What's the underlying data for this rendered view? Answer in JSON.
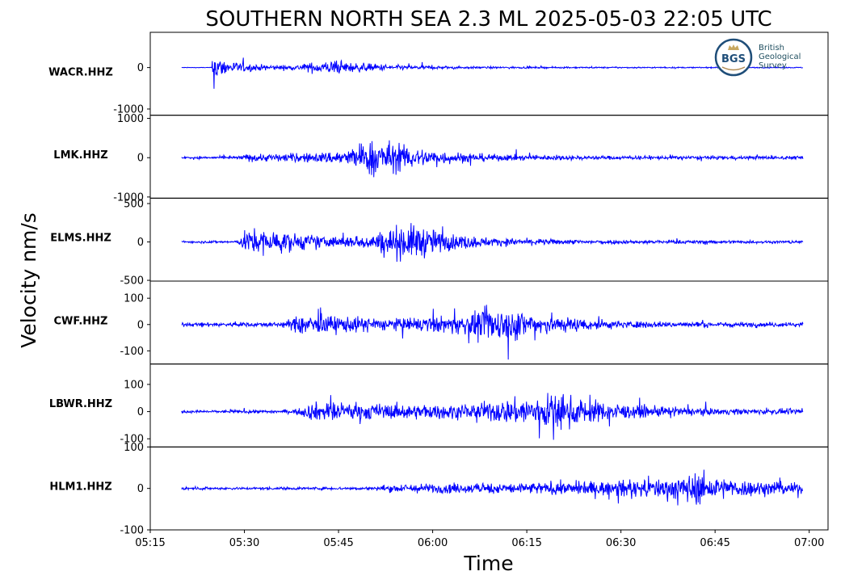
{
  "chart_data": {
    "type": "line",
    "title": "SOUTHERN NORTH SEA 2.3 ML   2025-05-03 22:05 UTC",
    "xlabel": "Time",
    "ylabel": "Velocity nm/s",
    "x_ticks": [
      "05:15",
      "05:30",
      "05:45",
      "06:00",
      "06:15",
      "06:30",
      "06:45",
      "07:00"
    ],
    "xlim": [
      "05:15",
      "07:03"
    ],
    "data_range": [
      "05:20",
      "06:59"
    ],
    "trace_color": "#0000ff",
    "logo": {
      "badge_text": "BGS",
      "lines": [
        "British",
        "Geological",
        "Survey"
      ],
      "ring_color": "#1f4e79",
      "text_color": "#1f4e5f"
    },
    "panels": [
      {
        "station": "WACR.HHZ",
        "yticks": [
          {
            "v": 0,
            "label": "0"
          },
          {
            "v": -1000,
            "label": "-1000"
          }
        ],
        "ylim": [
          -1150,
          850
        ],
        "envelope": [
          {
            "t": "05:20",
            "amp": 15
          },
          {
            "t": "05:24.8",
            "amp": 15
          },
          {
            "t": "05:25.0",
            "amp": 1100
          },
          {
            "t": "05:26",
            "amp": 500
          },
          {
            "t": "05:28",
            "amp": 320
          },
          {
            "t": "05:32",
            "amp": 160
          },
          {
            "t": "05:38",
            "amp": 120
          },
          {
            "t": "05:41",
            "amp": 280
          },
          {
            "t": "05:44",
            "amp": 360
          },
          {
            "t": "05:48",
            "amp": 240
          },
          {
            "t": "05:55",
            "amp": 130
          },
          {
            "t": "06:05",
            "amp": 60
          },
          {
            "t": "06:20",
            "amp": 40
          },
          {
            "t": "06:40",
            "amp": 30
          },
          {
            "t": "06:59",
            "amp": 25
          }
        ]
      },
      {
        "station": "LMK.HHZ",
        "yticks": [
          {
            "v": 1000,
            "label": "1000"
          },
          {
            "v": 0,
            "label": "0"
          },
          {
            "v": -1000,
            "label": "-1000"
          }
        ],
        "ylim": [
          -1030,
          1080
        ],
        "envelope": [
          {
            "t": "05:20",
            "amp": 70
          },
          {
            "t": "05:29",
            "amp": 80
          },
          {
            "t": "05:30",
            "amp": 200
          },
          {
            "t": "05:36",
            "amp": 230
          },
          {
            "t": "05:42",
            "amp": 280
          },
          {
            "t": "05:47",
            "amp": 500
          },
          {
            "t": "05:50",
            "amp": 1000
          },
          {
            "t": "05:53",
            "amp": 900
          },
          {
            "t": "05:57",
            "amp": 550
          },
          {
            "t": "06:03",
            "amp": 320
          },
          {
            "t": "06:10",
            "amp": 180
          },
          {
            "t": "06:25",
            "amp": 110
          },
          {
            "t": "06:59",
            "amp": 90
          }
        ]
      },
      {
        "station": "ELMS.HHZ",
        "yticks": [
          {
            "v": 500,
            "label": "500"
          },
          {
            "v": 0,
            "label": "0"
          },
          {
            "v": -500,
            "label": "-500"
          }
        ],
        "ylim": [
          -510,
          570
        ],
        "envelope": [
          {
            "t": "05:20",
            "amp": 30
          },
          {
            "t": "05:29",
            "amp": 40
          },
          {
            "t": "05:30",
            "amp": 300
          },
          {
            "t": "05:32",
            "amp": 380
          },
          {
            "t": "05:38",
            "amp": 250
          },
          {
            "t": "05:44",
            "amp": 150
          },
          {
            "t": "05:50",
            "amp": 200
          },
          {
            "t": "05:55",
            "amp": 500
          },
          {
            "t": "05:58",
            "amp": 480
          },
          {
            "t": "06:02",
            "amp": 250
          },
          {
            "t": "06:10",
            "amp": 110
          },
          {
            "t": "06:25",
            "amp": 60
          },
          {
            "t": "06:59",
            "amp": 40
          }
        ]
      },
      {
        "station": "CWF.HHZ",
        "yticks": [
          {
            "v": 100,
            "label": "100"
          },
          {
            "v": 0,
            "label": "0"
          },
          {
            "v": -100,
            "label": "-100"
          }
        ],
        "ylim": [
          -150,
          165
        ],
        "envelope": [
          {
            "t": "05:20",
            "amp": 15
          },
          {
            "t": "05:36",
            "amp": 20
          },
          {
            "t": "05:39",
            "amp": 80
          },
          {
            "t": "05:45",
            "amp": 70
          },
          {
            "t": "05:55",
            "amp": 50
          },
          {
            "t": "06:05",
            "amp": 80
          },
          {
            "t": "06:10",
            "amp": 150
          },
          {
            "t": "06:14",
            "amp": 120
          },
          {
            "t": "06:20",
            "amp": 70
          },
          {
            "t": "06:30",
            "amp": 30
          },
          {
            "t": "06:45",
            "amp": 20
          },
          {
            "t": "06:59",
            "amp": 18
          }
        ]
      },
      {
        "station": "LBWR.HHZ",
        "yticks": [
          {
            "v": 100,
            "label": "100"
          },
          {
            "v": 0,
            "label": "0"
          },
          {
            "v": -100,
            "label": "-100"
          }
        ],
        "ylim": [
          -130,
          175
        ],
        "envelope": [
          {
            "t": "05:20",
            "amp": 10
          },
          {
            "t": "05:38",
            "amp": 15
          },
          {
            "t": "05:41",
            "amp": 75
          },
          {
            "t": "05:46",
            "amp": 70
          },
          {
            "t": "05:55",
            "amp": 60
          },
          {
            "t": "06:05",
            "amp": 55
          },
          {
            "t": "06:14",
            "amp": 110
          },
          {
            "t": "06:19",
            "amp": 150
          },
          {
            "t": "06:24",
            "amp": 100
          },
          {
            "t": "06:32",
            "amp": 50
          },
          {
            "t": "06:45",
            "amp": 25
          },
          {
            "t": "06:59",
            "amp": 20
          }
        ]
      },
      {
        "station": "HLM1.HHZ",
        "yticks": [
          {
            "v": 100,
            "label": "100"
          },
          {
            "v": 0,
            "label": "0"
          },
          {
            "v": -100,
            "label": "-100"
          }
        ],
        "ylim": [
          -100,
          100
        ],
        "envelope": [
          {
            "t": "05:20",
            "amp": 6
          },
          {
            "t": "05:51",
            "amp": 8
          },
          {
            "t": "05:52",
            "amp": 18
          },
          {
            "t": "05:58",
            "amp": 25
          },
          {
            "t": "06:05",
            "amp": 25
          },
          {
            "t": "06:15",
            "amp": 30
          },
          {
            "t": "06:30",
            "amp": 40
          },
          {
            "t": "06:39",
            "amp": 60
          },
          {
            "t": "06:42",
            "amp": 85
          },
          {
            "t": "06:47",
            "amp": 50
          },
          {
            "t": "06:55",
            "amp": 35
          },
          {
            "t": "06:59",
            "amp": 30
          }
        ]
      }
    ]
  }
}
